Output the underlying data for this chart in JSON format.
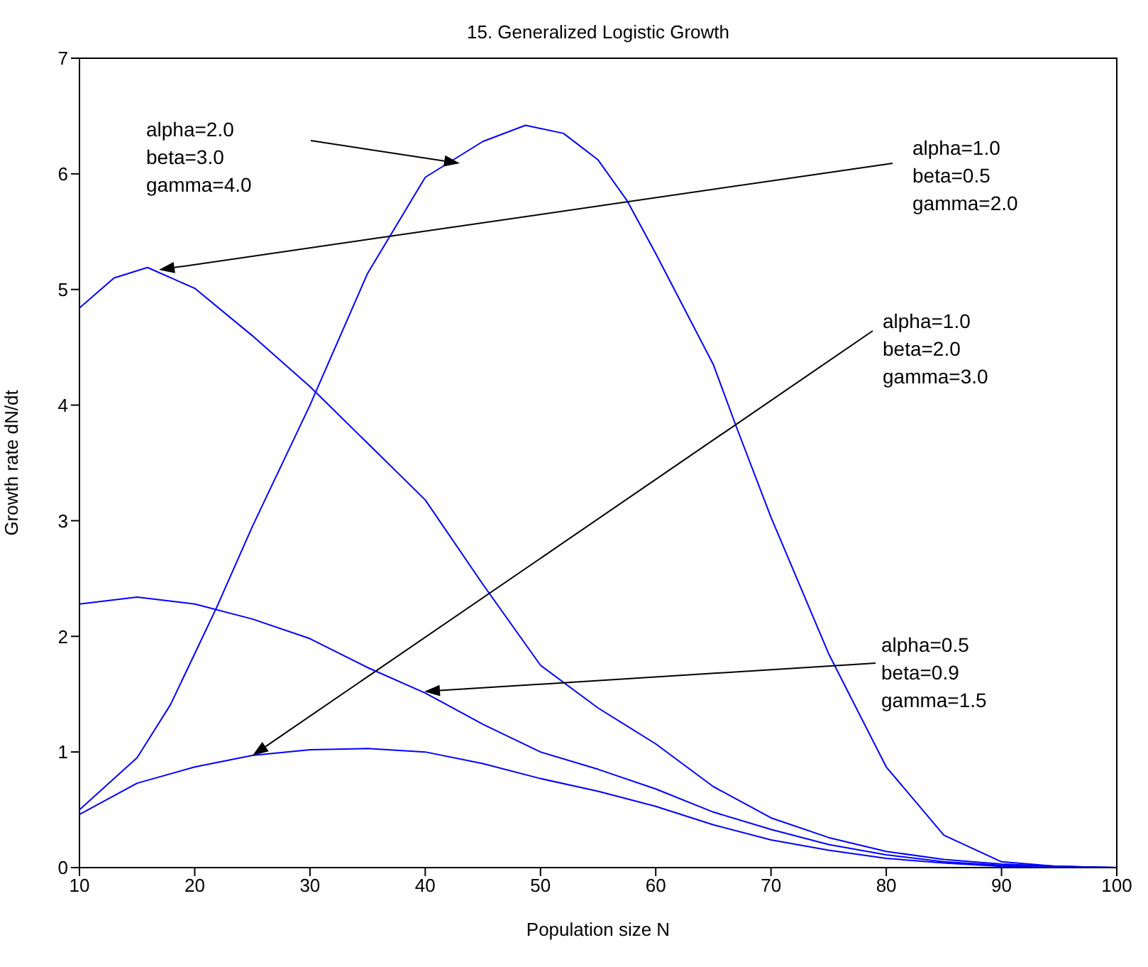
{
  "chart_data": {
    "type": "line",
    "title": "15. Generalized Logistic Growth",
    "xlabel": "Population size N",
    "ylabel": "Growth rate dN/dt",
    "xlim": [
      10,
      100
    ],
    "xticks": [
      10,
      20,
      30,
      40,
      50,
      60,
      70,
      80,
      90,
      100
    ],
    "ylim": [
      0,
      7
    ],
    "yticks": [
      0,
      1,
      2,
      3,
      4,
      5,
      6,
      7
    ],
    "grid": false,
    "legend": false,
    "marker": "none",
    "line_style": "solid",
    "series": [
      {
        "color": "#0000ff",
        "x": [
          10,
          15,
          17.9,
          20,
          21.9,
          25,
          30,
          35,
          40,
          45,
          48.7,
          52,
          55,
          57.5,
          60,
          65,
          67,
          70,
          75,
          80,
          85,
          90,
          95,
          100
        ],
        "values": [
          0.5,
          0.95,
          1.41,
          1.85,
          2.25,
          2.95,
          4.0,
          5.14,
          5.97,
          6.28,
          6.42,
          6.35,
          6.12,
          5.77,
          5.31,
          4.35,
          3.81,
          3.03,
          1.85,
          0.87,
          0.28,
          0.05,
          0.01,
          0
        ]
      },
      {
        "color": "#0000ff",
        "x": [
          10,
          13,
          15.9,
          20,
          25,
          30,
          35,
          40,
          45,
          50,
          55,
          60,
          65,
          70,
          75,
          80,
          85,
          90,
          95,
          100
        ],
        "values": [
          4.84,
          5.1,
          5.19,
          5.01,
          4.6,
          4.16,
          3.67,
          3.18,
          2.45,
          1.75,
          1.38,
          1.07,
          0.7,
          0.43,
          0.26,
          0.14,
          0.07,
          0.03,
          0.01,
          0
        ]
      },
      {
        "color": "#0000ff",
        "x": [
          10,
          15,
          20,
          25,
          30,
          35,
          40,
          45,
          50,
          55,
          60,
          65,
          70,
          75,
          80,
          85,
          90,
          95,
          100
        ],
        "values": [
          2.28,
          2.34,
          2.28,
          2.15,
          1.98,
          1.73,
          1.51,
          1.24,
          1.0,
          0.85,
          0.68,
          0.48,
          0.33,
          0.2,
          0.11,
          0.05,
          0.02,
          0.01,
          0
        ]
      },
      {
        "color": "#0000ff",
        "x": [
          10,
          15,
          20,
          25,
          30,
          35,
          40,
          45,
          50,
          55,
          60,
          65,
          70,
          75,
          80,
          85,
          90,
          95,
          100
        ],
        "values": [
          0.46,
          0.73,
          0.87,
          0.97,
          1.02,
          1.03,
          1.0,
          0.9,
          0.77,
          0.66,
          0.53,
          0.37,
          0.24,
          0.15,
          0.08,
          0.04,
          0.01,
          0,
          0
        ]
      }
    ],
    "annotations": [
      "alpha=2.0\nbeta=3.0\ngamma=4.0",
      "alpha=1.0\nbeta=0.5\ngamma=2.0",
      "alpha=1.0\nbeta=2.0\ngamma=3.0",
      "alpha=0.5\nbeta=0.9\ngamma=1.5"
    ]
  }
}
